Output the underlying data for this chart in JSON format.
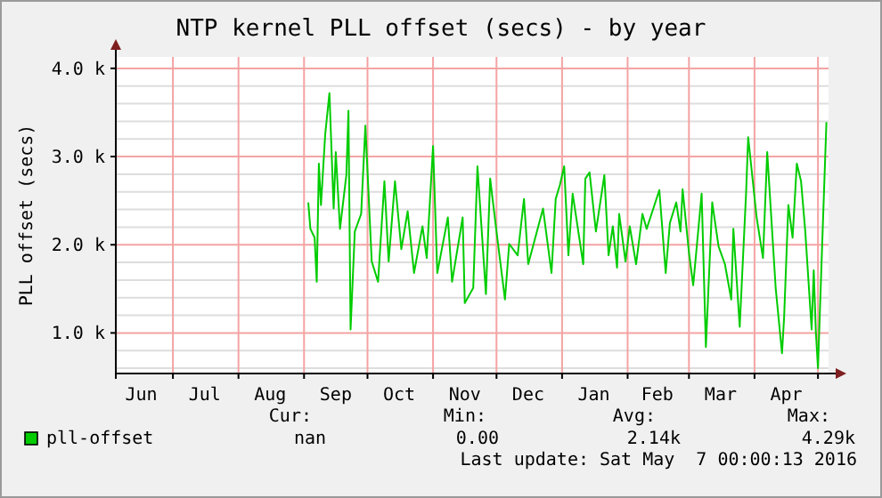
{
  "chart_data": {
    "type": "line",
    "title": "NTP kernel PLL offset (secs) - by year",
    "ylabel": "PLL offset (secs)",
    "x": [
      "2015-09-03",
      "2015-09-04",
      "2015-09-06",
      "2015-09-07",
      "2015-09-08",
      "2015-09-09",
      "2015-09-11",
      "2015-09-13",
      "2015-09-15",
      "2015-09-16",
      "2015-09-18",
      "2015-09-21",
      "2015-09-22",
      "2015-09-23",
      "2015-09-25",
      "2015-09-28",
      "2015-09-30",
      "2015-10-03",
      "2015-10-06",
      "2015-10-09",
      "2015-10-11",
      "2015-10-14",
      "2015-10-17",
      "2015-10-20",
      "2015-10-23",
      "2015-10-27",
      "2015-10-29",
      "2015-11-01",
      "2015-11-03",
      "2015-11-08",
      "2015-11-10",
      "2015-11-15",
      "2015-11-16",
      "2015-11-20",
      "2015-11-22",
      "2015-11-26",
      "2015-11-28",
      "2015-12-01",
      "2015-12-05",
      "2015-12-07",
      "2015-12-11",
      "2015-12-14",
      "2015-12-16",
      "2015-12-23",
      "2015-12-27",
      "2015-12-29",
      "2015-12-31",
      "2016-01-02",
      "2016-01-04",
      "2016-01-06",
      "2016-01-11",
      "2016-01-12",
      "2016-01-14",
      "2016-01-17",
      "2016-01-21",
      "2016-01-23",
      "2016-01-25",
      "2016-01-27",
      "2016-01-28",
      "2016-01-31",
      "2016-02-02",
      "2016-02-05",
      "2016-02-08",
      "2016-02-10",
      "2016-02-16",
      "2016-02-19",
      "2016-02-21",
      "2016-02-24",
      "2016-02-26",
      "2016-02-27",
      "2016-03-01",
      "2016-03-03",
      "2016-03-07",
      "2016-03-09",
      "2016-03-12",
      "2016-03-15",
      "2016-03-18",
      "2016-03-21",
      "2016-03-22",
      "2016-03-25",
      "2016-03-28",
      "2016-03-29",
      "2016-04-02",
      "2016-04-05",
      "2016-04-07",
      "2016-04-11",
      "2016-04-14",
      "2016-04-15",
      "2016-04-17",
      "2016-04-19",
      "2016-04-21",
      "2016-04-23",
      "2016-04-25",
      "2016-04-28",
      "2016-04-29",
      "2016-04-30",
      "2016-05-01",
      "2016-05-03",
      "2016-05-05"
    ],
    "series": [
      {
        "name": "pll-offset",
        "color": "#00cc00",
        "values": [
          2480,
          2180,
          2080,
          1580,
          2920,
          2450,
          3250,
          3720,
          2410,
          3050,
          2180,
          2790,
          3520,
          1040,
          2150,
          2350,
          3350,
          1810,
          1580,
          2720,
          1810,
          2720,
          1950,
          2380,
          1680,
          2210,
          1850,
          3120,
          1680,
          2310,
          1580,
          2310,
          1340,
          1510,
          2890,
          1440,
          2750,
          2150,
          1380,
          2010,
          1880,
          2520,
          1780,
          2410,
          1680,
          2520,
          2680,
          2890,
          1880,
          2580,
          1780,
          2750,
          2820,
          2150,
          2790,
          1880,
          2210,
          1740,
          2350,
          1810,
          2210,
          1780,
          2350,
          2180,
          2620,
          1680,
          2250,
          2480,
          2150,
          2630,
          1910,
          1540,
          2580,
          840,
          2480,
          1980,
          1780,
          1380,
          2180,
          1070,
          2580,
          3220,
          2310,
          1850,
          3050,
          1510,
          770,
          1180,
          2450,
          2080,
          2920,
          2720,
          2150,
          1040,
          1710,
          1010,
          600,
          2010,
          3390
        ]
      }
    ],
    "xlim": [
      "2015-06-04",
      "2016-05-06"
    ],
    "xticks": [
      {
        "value": "2015-06-16",
        "label": "Jun"
      },
      {
        "value": "2015-07-01",
        "label": null
      },
      {
        "value": "2015-07-16",
        "label": "Jul"
      },
      {
        "value": "2015-08-01",
        "label": null
      },
      {
        "value": "2015-08-16",
        "label": "Aug"
      },
      {
        "value": "2015-09-01",
        "label": null
      },
      {
        "value": "2015-09-16",
        "label": "Sep"
      },
      {
        "value": "2015-10-01",
        "label": null
      },
      {
        "value": "2015-10-16",
        "label": "Oct"
      },
      {
        "value": "2015-11-01",
        "label": null
      },
      {
        "value": "2015-11-16",
        "label": "Nov"
      },
      {
        "value": "2015-12-01",
        "label": null
      },
      {
        "value": "2015-12-16",
        "label": "Dec"
      },
      {
        "value": "2016-01-01",
        "label": null
      },
      {
        "value": "2016-01-16",
        "label": "Jan"
      },
      {
        "value": "2016-02-01",
        "label": null
      },
      {
        "value": "2016-02-15",
        "label": "Feb"
      },
      {
        "value": "2016-03-01",
        "label": null
      },
      {
        "value": "2016-03-16",
        "label": "Mar"
      },
      {
        "value": "2016-04-01",
        "label": null
      },
      {
        "value": "2016-04-16",
        "label": "Apr"
      },
      {
        "value": "2016-05-01",
        "label": null
      }
    ],
    "ylim": [
      540,
      4130
    ],
    "yticks": [
      {
        "value": 600,
        "label": null
      },
      {
        "value": 800,
        "label": null
      },
      {
        "value": 1000,
        "label": "1.0 k"
      },
      {
        "value": 1200,
        "label": null
      },
      {
        "value": 1400,
        "label": null
      },
      {
        "value": 1600,
        "label": null
      },
      {
        "value": 1800,
        "label": null
      },
      {
        "value": 2000,
        "label": "2.0 k"
      },
      {
        "value": 2200,
        "label": null
      },
      {
        "value": 2400,
        "label": null
      },
      {
        "value": 2600,
        "label": null
      },
      {
        "value": 2800,
        "label": null
      },
      {
        "value": 3000,
        "label": "3.0 k"
      },
      {
        "value": 3200,
        "label": null
      },
      {
        "value": 3400,
        "label": null
      },
      {
        "value": 3600,
        "label": null
      },
      {
        "value": 3800,
        "label": null
      },
      {
        "value": 4000,
        "label": "4.0 k"
      }
    ],
    "grid": true,
    "legend": "bottom left",
    "marker": "none",
    "line_style": "solid",
    "annotations": [
      "Cur:",
      "Min:",
      "Avg:",
      "Max:",
      "nan",
      "0.00",
      "2.14k",
      "4.29k",
      "Last update: Sat May  7 00:00:13 2016"
    ]
  }
}
